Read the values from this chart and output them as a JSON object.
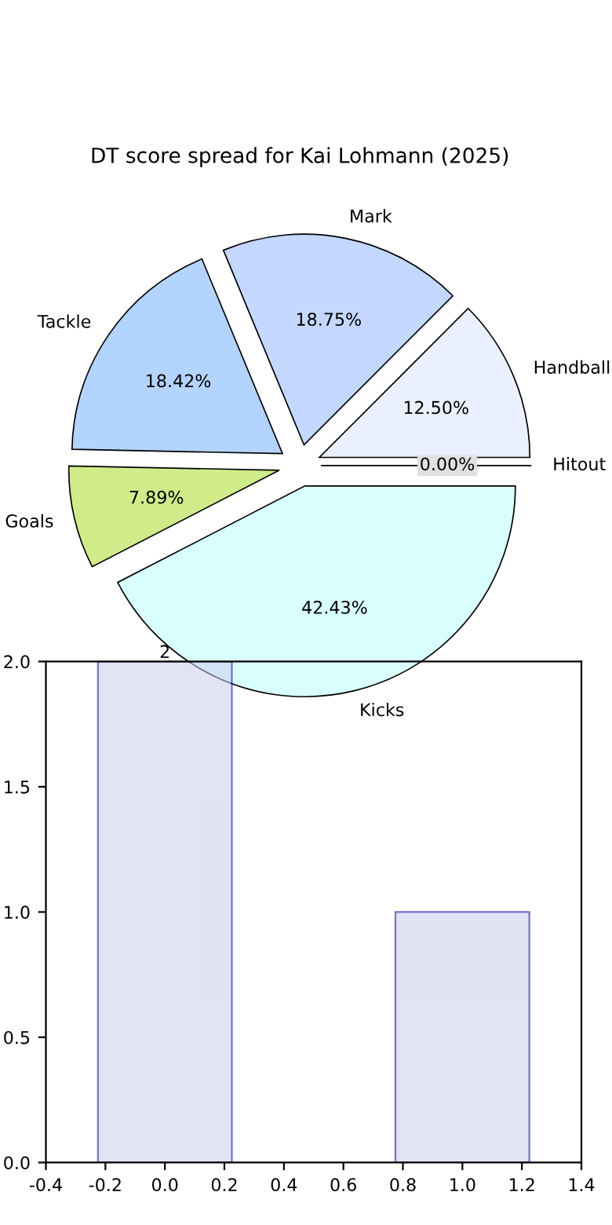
{
  "chart_data": [
    {
      "type": "bar",
      "x": [
        0,
        1
      ],
      "values": [
        2,
        1
      ],
      "color": "#ccccee",
      "value_labels": [
        "2",
        null
      ],
      "xlim": [
        -0.4,
        1.4
      ],
      "xticks": [
        -0.4,
        -0.2,
        {
          "value": 0,
          "label": "0.0"
        },
        0.2,
        0.4,
        0.6,
        0.8,
        {
          "value": 1,
          "label": "1.0"
        },
        1.2,
        1.4
      ],
      "ylim": [
        0,
        2
      ],
      "yticks": [
        {
          "value": 0,
          "label": "0.0"
        },
        0.5,
        {
          "value": 1,
          "label": "1.0"
        },
        1.5,
        {
          "value": 2,
          "label": "2.0"
        }
      ],
      "grid": false
    },
    {
      "type": "pie",
      "title": "DT score spread for Kai Lohmann (2025)",
      "categories": [
        "Handball",
        "Mark",
        "Tackle",
        "Goals",
        "Kicks",
        "Hitout"
      ],
      "values": [
        12.5,
        18.75,
        18.42,
        7.89,
        42.43,
        0.0
      ],
      "colors": [
        "#eaf0ff",
        "#c4d8ff",
        "#b3d4ff",
        "#d0eb8a",
        "#d9ffff",
        "#e0e0e0"
      ],
      "value_labels": [
        "12.50%",
        "18.75%",
        "18.42%",
        "7.89%",
        "42.43%",
        "0.00%"
      ]
    }
  ]
}
